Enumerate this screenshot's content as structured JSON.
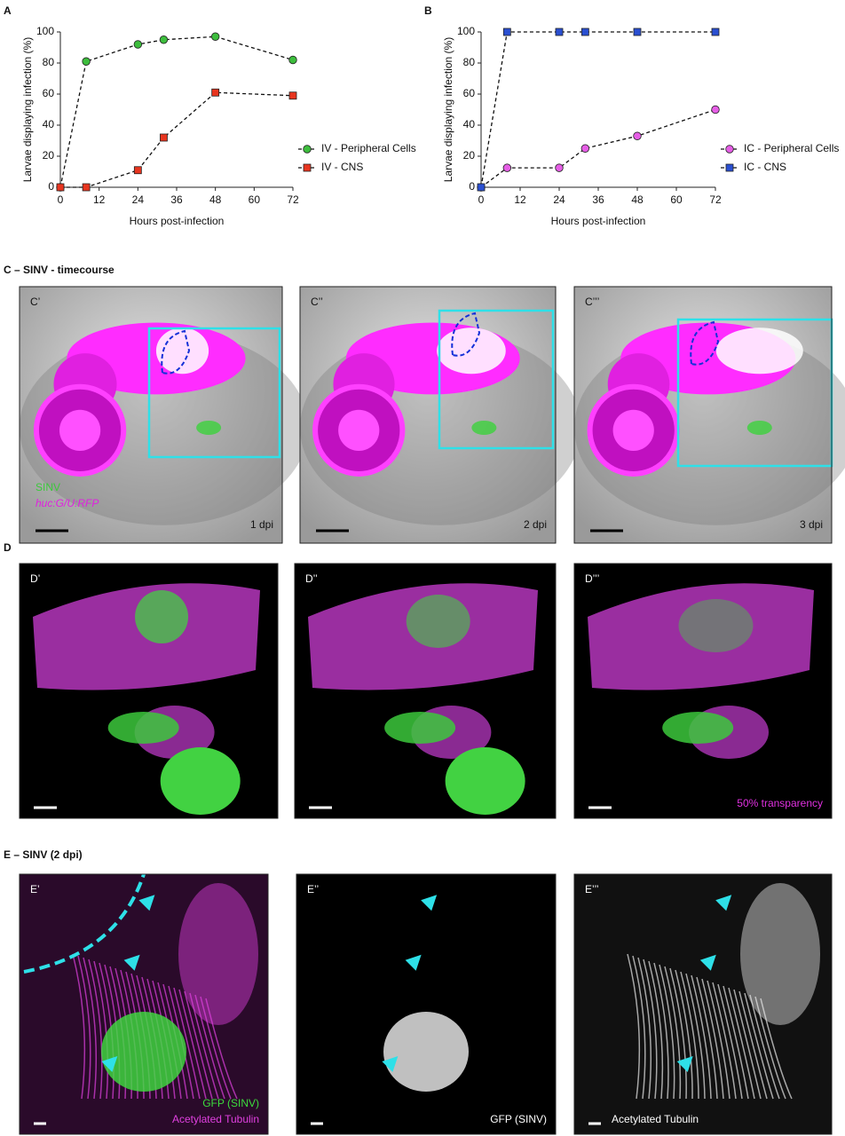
{
  "chart_data": [
    {
      "type": "line",
      "label": "A",
      "ylabel": "Larvae displaying infection (%)",
      "xlabel": "Hours post-infection",
      "x": [
        0,
        8,
        24,
        32,
        48,
        72
      ],
      "xlim": [
        0,
        72
      ],
      "xticks": [
        0,
        12,
        24,
        36,
        48,
        60,
        72
      ],
      "ylim": [
        0,
        100
      ],
      "yticks": [
        0,
        20,
        40,
        60,
        80,
        100
      ],
      "legend": "right",
      "series": [
        {
          "name": "IV - Peripheral Cells",
          "color": "#3dbd3d",
          "marker": "circle",
          "values": [
            0,
            81,
            92,
            95,
            97,
            82
          ]
        },
        {
          "name": "IV - CNS",
          "color": "#e8351f",
          "marker": "square",
          "values": [
            0,
            0,
            11,
            32,
            61,
            59
          ]
        }
      ]
    },
    {
      "type": "line",
      "label": "B",
      "ylabel": "Larvae displaying infection (%)",
      "xlabel": "Hours post-infection",
      "x": [
        0,
        8,
        24,
        32,
        48,
        72
      ],
      "xlim": [
        0,
        72
      ],
      "xticks": [
        0,
        12,
        24,
        36,
        48,
        60,
        72
      ],
      "ylim": [
        0,
        100
      ],
      "yticks": [
        0,
        20,
        40,
        60,
        80,
        100
      ],
      "legend": "right",
      "series": [
        {
          "name": "IC - Peripheral Cells",
          "color": "#e65ee6",
          "marker": "circle",
          "values": [
            0,
            12.5,
            12.5,
            25,
            33,
            50
          ]
        },
        {
          "name": "IC - CNS",
          "color": "#2a4fd1",
          "marker": "square",
          "values": [
            0,
            100,
            100,
            100,
            100,
            100
          ]
        }
      ]
    }
  ],
  "sections": [
    {
      "title": "C – SINV - timecourse",
      "images": [
        {
          "label": "C’",
          "texts": [
            {
              "text": "SINV",
              "color": "#3cc83c"
            },
            {
              "text": "huc:G/U:RFP",
              "color": "#e020e0"
            },
            {
              "text": "1 dpi",
              "color": "#111111"
            }
          ]
        },
        {
          "label": "C’’",
          "texts": [
            {
              "text": "2 dpi",
              "color": "#111111"
            }
          ]
        },
        {
          "label": "C’’’",
          "texts": [
            {
              "text": "3 dpi",
              "color": "#111111"
            }
          ]
        }
      ]
    },
    {
      "title": "D",
      "images": [
        {
          "label": "D’",
          "texts": []
        },
        {
          "label": "D’’",
          "texts": []
        },
        {
          "label": "D’’’",
          "texts": [
            {
              "text": "50% transparency",
              "color": "#e030e0"
            }
          ]
        }
      ]
    },
    {
      "title": "E – SINV (2 dpi)",
      "images": [
        {
          "label": "E’",
          "texts": [
            {
              "text": "GFP (SINV)",
              "color": "#3cdc3c"
            },
            {
              "text": "Acetylated Tubulin",
              "color": "#e040e0"
            }
          ]
        },
        {
          "label": "E’’",
          "texts": [
            {
              "text": "GFP (SINV)",
              "color": "#ffffff"
            }
          ]
        },
        {
          "label": "E’’’",
          "texts": [
            {
              "text": "Acetylated Tubulin",
              "color": "#ffffff"
            }
          ]
        }
      ]
    }
  ]
}
